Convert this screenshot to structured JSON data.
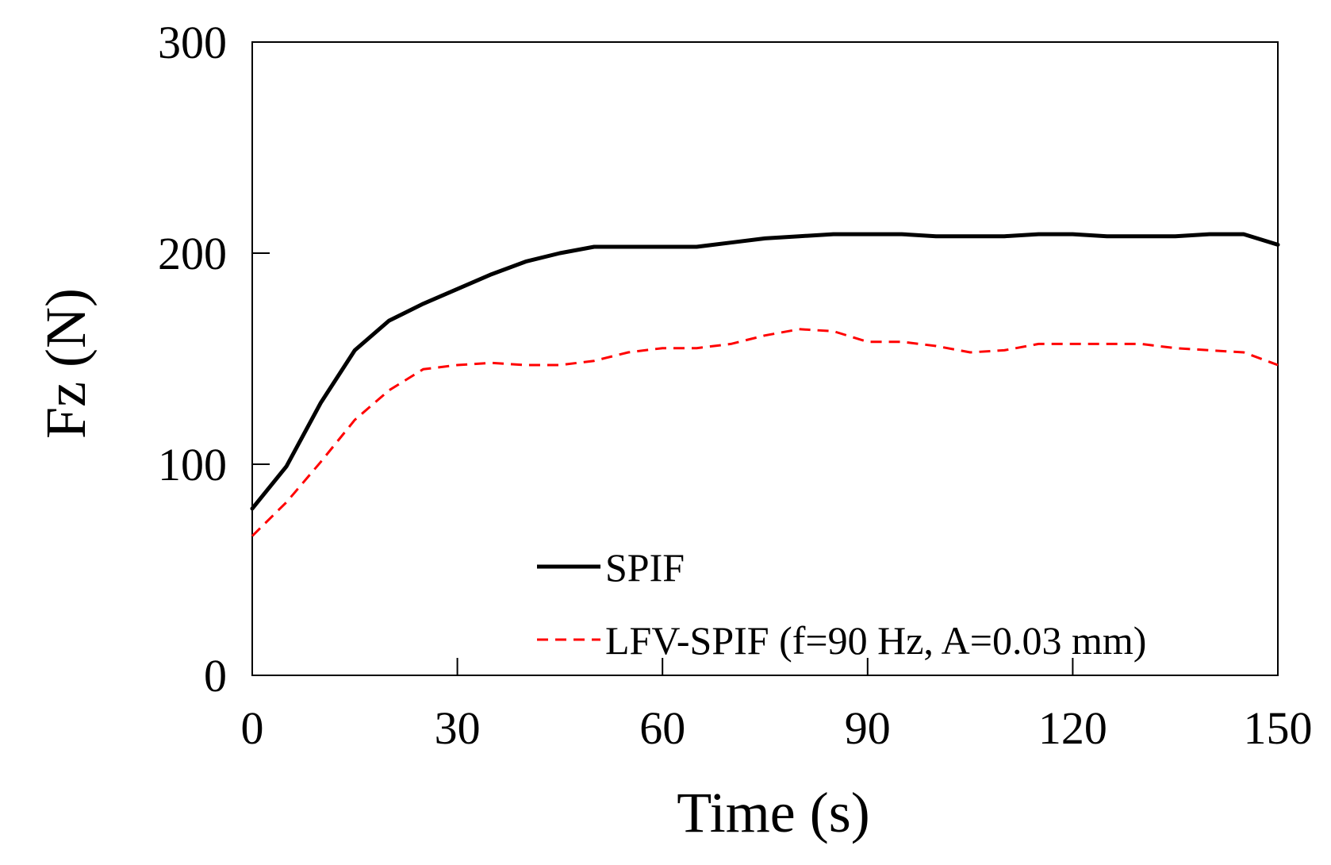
{
  "chart_data": {
    "type": "line",
    "title": "",
    "xlabel": "Time (s)",
    "ylabel": "Fz (N)",
    "xlim": [
      0,
      150
    ],
    "ylim": [
      0,
      300
    ],
    "xticks": [
      0,
      30,
      60,
      90,
      120,
      150
    ],
    "yticks": [
      0,
      100,
      200,
      300
    ],
    "grid": false,
    "legend_position": "bottom-right",
    "series": [
      {
        "name": "SPIF",
        "color": "#000000",
        "style": "solid",
        "x": [
          0,
          5,
          10,
          15,
          20,
          25,
          30,
          35,
          40,
          45,
          50,
          55,
          60,
          65,
          70,
          75,
          80,
          85,
          90,
          95,
          100,
          105,
          110,
          115,
          120,
          125,
          130,
          135,
          140,
          145,
          150
        ],
        "y": [
          79,
          99,
          129,
          154,
          168,
          176,
          183,
          190,
          196,
          200,
          203,
          203,
          203,
          203,
          205,
          207,
          208,
          209,
          209,
          209,
          208,
          208,
          208,
          209,
          209,
          208,
          208,
          208,
          209,
          209,
          204
        ]
      },
      {
        "name": "LFV-SPIF (f=90 Hz, A=0.03 mm)",
        "color": "#ff0000",
        "style": "dashed",
        "x": [
          0,
          5,
          10,
          15,
          20,
          25,
          30,
          35,
          40,
          45,
          50,
          55,
          60,
          65,
          70,
          75,
          80,
          85,
          90,
          95,
          100,
          105,
          110,
          115,
          120,
          125,
          130,
          135,
          140,
          145,
          150
        ],
        "y": [
          66,
          82,
          101,
          121,
          135,
          145,
          147,
          148,
          147,
          147,
          149,
          153,
          155,
          155,
          157,
          161,
          164,
          163,
          158,
          158,
          156,
          153,
          154,
          157,
          157,
          157,
          157,
          155,
          154,
          153,
          147
        ]
      }
    ]
  }
}
